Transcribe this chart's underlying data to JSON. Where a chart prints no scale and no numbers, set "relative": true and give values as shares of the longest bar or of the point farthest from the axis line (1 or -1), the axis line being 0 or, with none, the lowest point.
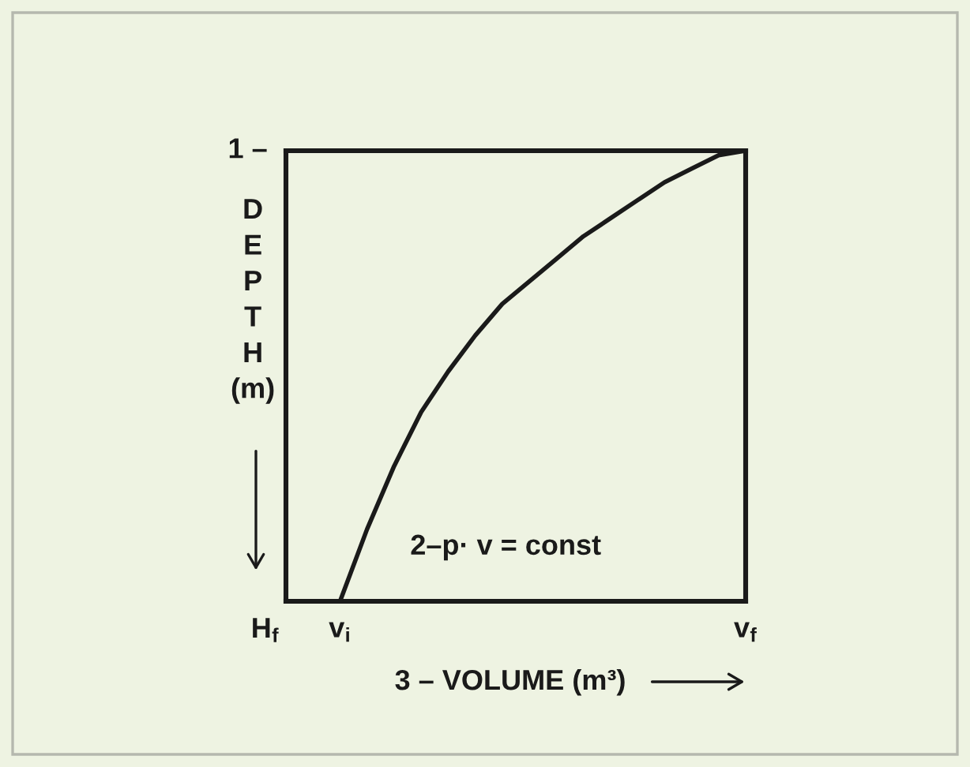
{
  "chart_data": {
    "type": "line",
    "xlabel": "3 – VOLUME (m³)",
    "ylabel": "DEPTH (m)",
    "annotations": [
      "1 –",
      "H$_{f}$",
      "2–p· v = const"
    ],
    "relative": true,
    "categories": [
      null,
      null,
      "v$_{i}$",
      null,
      null,
      null,
      null,
      null,
      null,
      null,
      null,
      null,
      null,
      null,
      null,
      null,
      null,
      "v$_{f}$"
    ],
    "values": [
      null,
      null,
      0,
      0.16,
      0.3,
      0.42,
      0.51,
      0.59,
      0.66,
      0.71,
      0.76,
      0.81,
      0.85,
      0.89,
      0.93,
      0.96,
      0.99,
      1
    ],
    "color": "#1a1a1a"
  }
}
